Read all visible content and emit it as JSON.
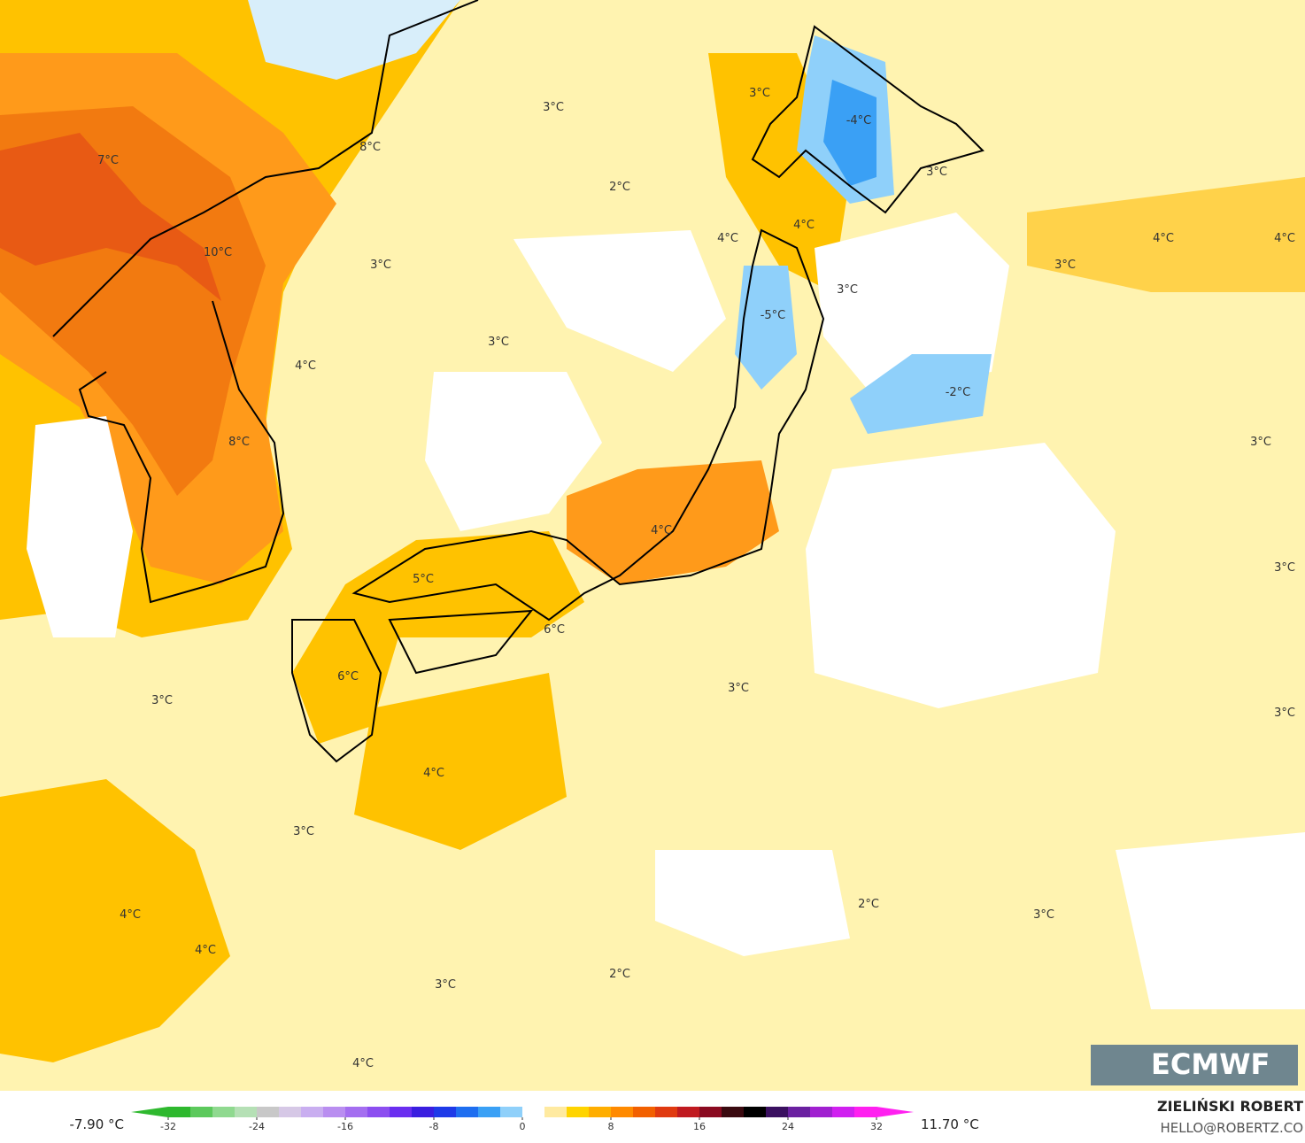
{
  "map": {
    "labels": [
      "7°C",
      "10°C",
      "8°C",
      "3°C",
      "2°C",
      "3°C",
      "-4°C",
      "3°C",
      "4°C",
      "4°C",
      "3°C",
      "3°C",
      "4°C",
      "4°C",
      "4°C",
      "3°C",
      "-5°C",
      "3°C",
      "-2°C",
      "3°C",
      "8°C",
      "4°C",
      "5°C",
      "6°C",
      "6°C",
      "3°C",
      "3°C",
      "3°C",
      "4°C",
      "3°C",
      "4°C",
      "4°C",
      "2°C",
      "3°C",
      "3°C",
      "2°C",
      "3°C",
      "4°C"
    ]
  },
  "colorbar": {
    "lim": [
      -32,
      32
    ],
    "ticks": [
      -32,
      -24,
      -16,
      -8,
      0,
      8,
      16,
      24,
      32
    ],
    "colors": [
      "#2eb82e",
      "#5cc95c",
      "#8fd98f",
      "#b5e0b5",
      "#c8c8c8",
      "#d6c8e6",
      "#c9aef0",
      "#b98ef0",
      "#a46ef0",
      "#8c4ef0",
      "#6a2ef0",
      "#3a1ee0",
      "#1e3ae8",
      "#1e6ef0",
      "#3aa0f5",
      "#8fd0fa",
      "#ffffff",
      "#ffeaa0",
      "#ffd400",
      "#ffae00",
      "#ff8a00",
      "#f26000",
      "#e03a10",
      "#c01a20",
      "#8a0a20",
      "#3a0a10",
      "#000000",
      "#3a1060",
      "#6a20a0",
      "#a020d0",
      "#d020f0",
      "#ff20f0"
    ],
    "min_label": "-7.90 °C",
    "max_label": "11.70 °C"
  },
  "footer": {
    "author": "ZIELIŃSKI ROBERT",
    "email": "HELLO@ROBERTZ.CO",
    "logo": "ECMWF"
  }
}
